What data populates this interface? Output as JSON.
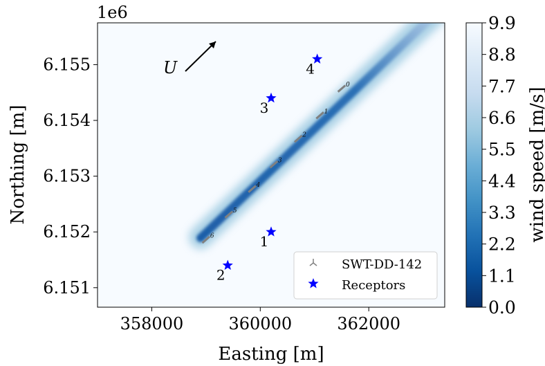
{
  "chart_data": {
    "type": "heatmap",
    "xlabel": "Easting [m]",
    "ylabel": "Northing [m]",
    "y_offset_label": "1e6",
    "xlim": [
      357000,
      363400
    ],
    "ylim": [
      6.15065,
      6.15575
    ],
    "x_ticks": [
      358000,
      360000,
      362000
    ],
    "x_tick_labels": [
      "358000",
      "360000",
      "362000"
    ],
    "y_ticks": [
      6.151,
      6.152,
      6.153,
      6.154,
      6.155
    ],
    "y_tick_labels": [
      "6.151",
      "6.152",
      "6.153",
      "6.154",
      "6.155"
    ],
    "colorbar": {
      "label": "wind speed [m/s]",
      "min": 0.0,
      "max": 9.9,
      "ticks": [
        0.0,
        1.1,
        2.2,
        3.3,
        4.4,
        5.5,
        6.6,
        7.7,
        8.8,
        9.9
      ],
      "tick_labels": [
        "0.0",
        "1.1",
        "2.2",
        "3.3",
        "4.4",
        "5.5",
        "6.6",
        "7.7",
        "8.8",
        "9.9"
      ],
      "colormap": [
        "#08306b",
        "#08519c",
        "#2171b5",
        "#4292c6",
        "#6baed6",
        "#9ecae1",
        "#c6dbef",
        "#deebf7",
        "#f7fbff"
      ]
    },
    "wind_label": "U",
    "turbines": [
      {
        "id": "0",
        "x": 361500,
        "y": 6.15457
      },
      {
        "id": "1",
        "x": 361100,
        "y": 6.15409
      },
      {
        "id": "2",
        "x": 360700,
        "y": 6.15367
      },
      {
        "id": "3",
        "x": 360250,
        "y": 6.15321
      },
      {
        "id": "4",
        "x": 359850,
        "y": 6.15277
      },
      {
        "id": "5",
        "x": 359420,
        "y": 6.15231
      },
      {
        "id": "6",
        "x": 359000,
        "y": 6.15186
      }
    ],
    "receptors": [
      {
        "id": "1",
        "x": 360200,
        "y": 6.152
      },
      {
        "id": "2",
        "x": 359400,
        "y": 6.1514
      },
      {
        "id": "3",
        "x": 360200,
        "y": 6.1544
      },
      {
        "id": "4",
        "x": 361050,
        "y": 6.1551
      }
    ],
    "legend": {
      "position": "lower-right",
      "entries": [
        {
          "label": "SWT-DD-142",
          "marker": "turbine",
          "color": "#808080"
        },
        {
          "label": "Receptors",
          "marker": "star",
          "color": "#0000ff"
        }
      ]
    },
    "colors": {
      "turbine": "#808080",
      "receptor": "#0000ff",
      "background": "#f7fbff"
    }
  }
}
